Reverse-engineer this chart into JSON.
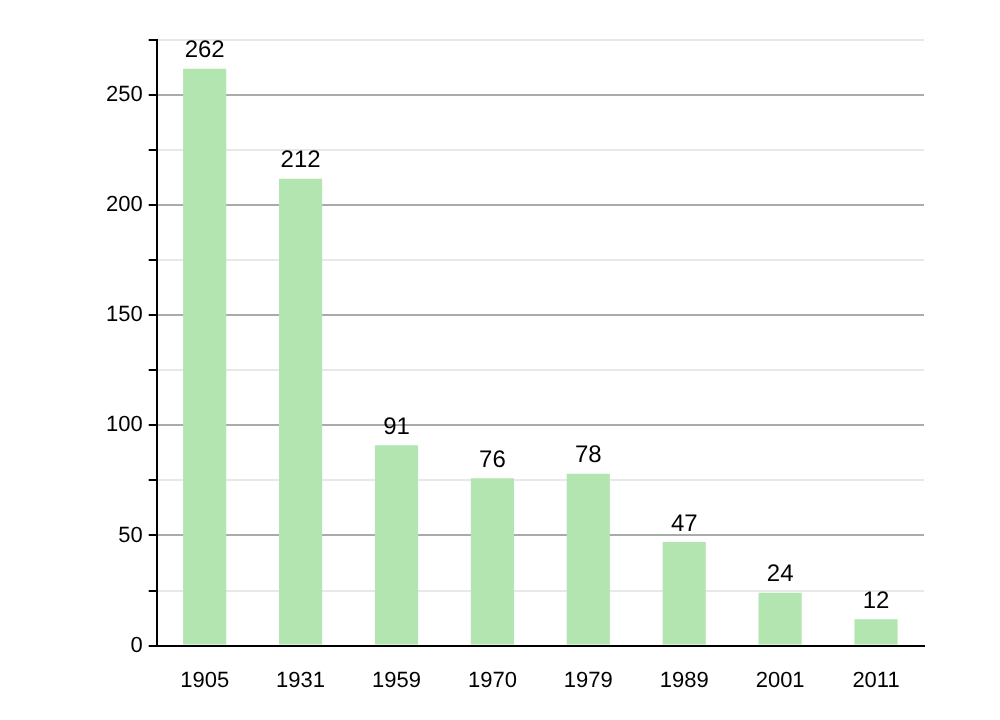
{
  "chart_data": {
    "type": "bar",
    "categories": [
      "1905",
      "1931",
      "1959",
      "1970",
      "1979",
      "1989",
      "2001",
      "2011"
    ],
    "values": [
      262,
      212,
      91,
      76,
      78,
      47,
      24,
      12
    ],
    "color": "#b2e5b0",
    "ylim": [
      0,
      275
    ],
    "yticks": [
      0,
      {
        "value": 25,
        "label": null
      },
      50,
      {
        "value": 75,
        "label": null
      },
      100,
      {
        "value": 125,
        "label": null
      },
      150,
      {
        "value": 175,
        "label": null
      },
      200,
      {
        "value": 225,
        "label": null
      },
      250,
      {
        "value": 275,
        "label": null
      }
    ],
    "grid": "y",
    "data_labels": true
  }
}
